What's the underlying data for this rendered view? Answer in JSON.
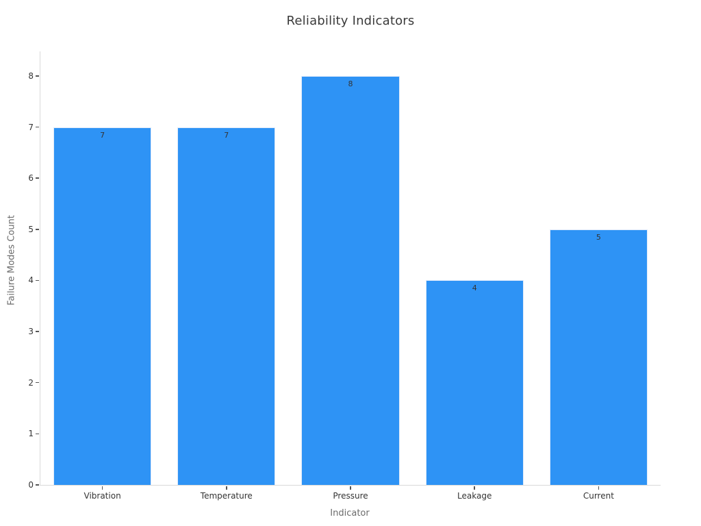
{
  "chart_data": {
    "type": "bar",
    "title": "Reliability Indicators",
    "xlabel": "Indicator",
    "ylabel": "Failure Modes Count",
    "categories": [
      "Vibration",
      "Temperature",
      "Pressure",
      "Leakage",
      "Current"
    ],
    "values": [
      7,
      7,
      8,
      4,
      5
    ],
    "bar_labels": [
      "7",
      "7",
      "8",
      "4",
      "5"
    ],
    "ylim": [
      0,
      8
    ],
    "yticks": [
      0,
      1,
      2,
      3,
      4,
      5,
      6,
      7,
      8
    ],
    "grid": "off",
    "legend": "none",
    "colors": {
      "bar_fill": "#2e93f5",
      "bar_edge": "#dfeafa",
      "title_text": "#3a3a3a",
      "tick_text": "#333333",
      "axis_label_text": "#6b6b6b",
      "spine": "#d9d9d9",
      "tick_mark": "#555555"
    }
  }
}
